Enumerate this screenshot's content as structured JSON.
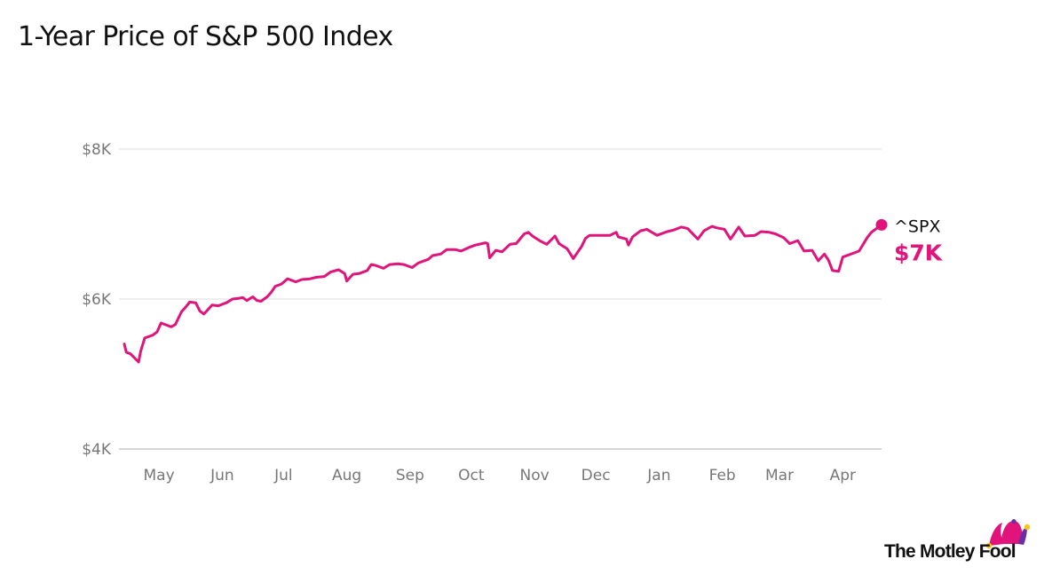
{
  "title": "1-Year Price of S&P 500 Index",
  "brand": {
    "name": "The Motley Fool",
    "colors": {
      "pink": "#e0147a",
      "purple": "#6b2fa3",
      "yellow": "#f5c518",
      "black": "#111111"
    }
  },
  "chart_data": {
    "type": "line",
    "title": "1-Year Price of S&P 500 Index",
    "xlabel": "",
    "ylabel": "",
    "ylim": [
      4000,
      8000
    ],
    "yticks": [
      4000,
      6000,
      8000
    ],
    "ytick_labels": [
      "$4K",
      "$6K",
      "$8K"
    ],
    "xlim": [
      "2025-04-14",
      "2026-04-20"
    ],
    "xticks": [
      "2025-05-01",
      "2025-06-01",
      "2025-07-01",
      "2025-08-01",
      "2025-09-01",
      "2025-10-01",
      "2025-11-01",
      "2025-12-01",
      "2026-01-01",
      "2026-02-01",
      "2026-03-01",
      "2026-04-01"
    ],
    "xtick_labels": [
      "May",
      "Jun",
      "Jul",
      "Aug",
      "Sep",
      "Oct",
      "Nov",
      "Dec",
      "Jan",
      "Feb",
      "Mar",
      "Apr"
    ],
    "grid": true,
    "series": [
      {
        "name": "^SPX",
        "color": "#e0147a",
        "end_label": "$7K",
        "points": [
          [
            "2025-04-14",
            5400
          ],
          [
            "2025-04-15",
            5290
          ],
          [
            "2025-04-17",
            5270
          ],
          [
            "2025-04-21",
            5160
          ],
          [
            "2025-04-22",
            5300
          ],
          [
            "2025-04-24",
            5480
          ],
          [
            "2025-04-28",
            5520
          ],
          [
            "2025-04-30",
            5560
          ],
          [
            "2025-05-02",
            5680
          ],
          [
            "2025-05-05",
            5650
          ],
          [
            "2025-05-07",
            5630
          ],
          [
            "2025-05-09",
            5660
          ],
          [
            "2025-05-12",
            5830
          ],
          [
            "2025-05-14",
            5890
          ],
          [
            "2025-05-16",
            5960
          ],
          [
            "2025-05-19",
            5950
          ],
          [
            "2025-05-21",
            5840
          ],
          [
            "2025-05-23",
            5800
          ],
          [
            "2025-05-27",
            5920
          ],
          [
            "2025-05-30",
            5910
          ],
          [
            "2025-06-03",
            5950
          ],
          [
            "2025-06-06",
            6000
          ],
          [
            "2025-06-09",
            6010
          ],
          [
            "2025-06-11",
            6020
          ],
          [
            "2025-06-13",
            5980
          ],
          [
            "2025-06-16",
            6030
          ],
          [
            "2025-06-18",
            5980
          ],
          [
            "2025-06-20",
            5970
          ],
          [
            "2025-06-23",
            6030
          ],
          [
            "2025-06-25",
            6090
          ],
          [
            "2025-06-27",
            6170
          ],
          [
            "2025-06-30",
            6200
          ],
          [
            "2025-07-03",
            6270
          ],
          [
            "2025-07-07",
            6230
          ],
          [
            "2025-07-10",
            6260
          ],
          [
            "2025-07-14",
            6270
          ],
          [
            "2025-07-17",
            6290
          ],
          [
            "2025-07-21",
            6300
          ],
          [
            "2025-07-24",
            6360
          ],
          [
            "2025-07-28",
            6390
          ],
          [
            "2025-07-31",
            6340
          ],
          [
            "2025-08-01",
            6240
          ],
          [
            "2025-08-04",
            6330
          ],
          [
            "2025-08-07",
            6340
          ],
          [
            "2025-08-11",
            6380
          ],
          [
            "2025-08-13",
            6460
          ],
          [
            "2025-08-15",
            6450
          ],
          [
            "2025-08-19",
            6410
          ],
          [
            "2025-08-22",
            6460
          ],
          [
            "2025-08-26",
            6470
          ],
          [
            "2025-08-29",
            6460
          ],
          [
            "2025-09-02",
            6420
          ],
          [
            "2025-09-05",
            6480
          ],
          [
            "2025-09-10",
            6530
          ],
          [
            "2025-09-12",
            6580
          ],
          [
            "2025-09-16",
            6600
          ],
          [
            "2025-09-19",
            6660
          ],
          [
            "2025-09-23",
            6660
          ],
          [
            "2025-09-26",
            6640
          ],
          [
            "2025-09-30",
            6690
          ],
          [
            "2025-10-03",
            6720
          ],
          [
            "2025-10-08",
            6750
          ],
          [
            "2025-10-09",
            6740
          ],
          [
            "2025-10-10",
            6550
          ],
          [
            "2025-10-13",
            6650
          ],
          [
            "2025-10-16",
            6630
          ],
          [
            "2025-10-20",
            6730
          ],
          [
            "2025-10-23",
            6740
          ],
          [
            "2025-10-27",
            6870
          ],
          [
            "2025-10-29",
            6890
          ],
          [
            "2025-10-31",
            6840
          ],
          [
            "2025-11-04",
            6770
          ],
          [
            "2025-11-07",
            6730
          ],
          [
            "2025-11-11",
            6840
          ],
          [
            "2025-11-13",
            6740
          ],
          [
            "2025-11-17",
            6670
          ],
          [
            "2025-11-20",
            6540
          ],
          [
            "2025-11-24",
            6700
          ],
          [
            "2025-11-26",
            6810
          ],
          [
            "2025-11-28",
            6850
          ],
          [
            "2025-12-03",
            6850
          ],
          [
            "2025-12-08",
            6850
          ],
          [
            "2025-12-11",
            6890
          ],
          [
            "2025-12-12",
            6830
          ],
          [
            "2025-12-16",
            6800
          ],
          [
            "2025-12-17",
            6720
          ],
          [
            "2025-12-19",
            6830
          ],
          [
            "2025-12-23",
            6910
          ],
          [
            "2025-12-26",
            6930
          ],
          [
            "2025-12-31",
            6850
          ],
          [
            "2026-01-05",
            6900
          ],
          [
            "2026-01-08",
            6920
          ],
          [
            "2026-01-12",
            6960
          ],
          [
            "2026-01-15",
            6940
          ],
          [
            "2026-01-20",
            6800
          ],
          [
            "2026-01-23",
            6910
          ],
          [
            "2026-01-27",
            6970
          ],
          [
            "2026-01-29",
            6950
          ],
          [
            "2026-02-02",
            6930
          ],
          [
            "2026-02-05",
            6800
          ],
          [
            "2026-02-09",
            6960
          ],
          [
            "2026-02-12",
            6840
          ],
          [
            "2026-02-17",
            6850
          ],
          [
            "2026-02-20",
            6900
          ],
          [
            "2026-02-24",
            6890
          ],
          [
            "2026-02-27",
            6870
          ],
          [
            "2026-03-03",
            6820
          ],
          [
            "2026-03-06",
            6740
          ],
          [
            "2026-03-10",
            6780
          ],
          [
            "2026-03-13",
            6640
          ],
          [
            "2026-03-17",
            6650
          ],
          [
            "2026-03-20",
            6510
          ],
          [
            "2026-03-23",
            6600
          ],
          [
            "2026-03-25",
            6520
          ],
          [
            "2026-03-27",
            6380
          ],
          [
            "2026-03-30",
            6370
          ],
          [
            "2026-04-01",
            6560
          ],
          [
            "2026-04-06",
            6610
          ],
          [
            "2026-04-09",
            6640
          ],
          [
            "2026-04-13",
            6820
          ],
          [
            "2026-04-15",
            6890
          ],
          [
            "2026-04-20",
            6990
          ]
        ]
      }
    ]
  }
}
